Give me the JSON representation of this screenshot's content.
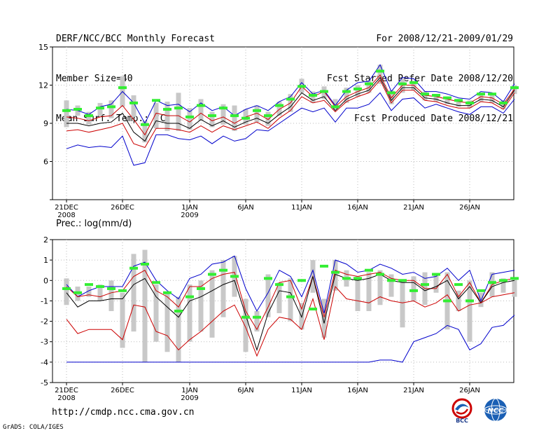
{
  "header": {
    "title": "DERF/NCC/BCC Monthly Forecast",
    "member_size": "Member Size=40",
    "variable": "Mean Surf. Temp.: °C",
    "period": "For 2008/12/21-2009/01/29",
    "fcst_started": "Fcst Started Refer Date 2008/12/20",
    "fcst_produced": "Fcst Produced Date 2008/12/21"
  },
  "footer": {
    "url": "http://cmdp.ncc.cma.gov.cn",
    "credit": "GrADS: COLA/IGES",
    "logo_left": "BCC",
    "logo_right": "NCC"
  },
  "colors": {
    "max": "#0000cc",
    "min": "#0000cc",
    "upper": "#cc0000",
    "lower": "#cc0000",
    "mean": "#000000",
    "obs": "#33ee33",
    "box": "#c8c8c8"
  },
  "chart_data": [
    {
      "type": "line",
      "title": "Mean Surf. Temp.: °C",
      "x_tick_labels": [
        "21DEC",
        "26DEC",
        "1JAN",
        "6JAN",
        "11JAN",
        "16JAN",
        "21JAN",
        "26JAN"
      ],
      "x_tick_day_index": [
        0,
        5,
        11,
        16,
        21,
        26,
        31,
        36
      ],
      "x_year_labels": [
        {
          "day_index": 0,
          "text": "2008"
        },
        {
          "day_index": 11,
          "text": "2009"
        }
      ],
      "ylim": [
        3,
        15
      ],
      "y_ticks": [
        3,
        6,
        9,
        12,
        15
      ],
      "y_tick_labels": [
        "",
        "6",
        "9",
        "12",
        "15"
      ],
      "series": [
        {
          "name": "max",
          "values": [
            10.1,
            10.0,
            9.7,
            10.3,
            10.5,
            11.5,
            10.6,
            9.0,
            10.8,
            10.4,
            10.5,
            9.9,
            10.6,
            10.0,
            10.3,
            9.6,
            10.1,
            10.4,
            10.0,
            10.7,
            11.1,
            12.2,
            11.3,
            11.6,
            10.4,
            11.6,
            12.2,
            12.3,
            13.6,
            11.5,
            12.6,
            12.5,
            11.5,
            11.5,
            11.3,
            11.0,
            10.9,
            11.5,
            11.4,
            10.7,
            12.1
          ]
        },
        {
          "name": "upper",
          "values": [
            9.5,
            9.4,
            9.2,
            9.5,
            9.6,
            10.4,
            9.3,
            8.1,
            9.8,
            9.6,
            9.6,
            9.1,
            9.8,
            9.2,
            9.5,
            9.0,
            9.5,
            9.8,
            9.3,
            10.1,
            10.6,
            11.9,
            11.1,
            11.5,
            10.3,
            11.1,
            11.5,
            11.8,
            12.8,
            11.0,
            12.0,
            12.0,
            11.2,
            11.1,
            10.9,
            10.7,
            10.6,
            11.1,
            11.0,
            10.5,
            11.7
          ]
        },
        {
          "name": "mean",
          "values": [
            9.0,
            9.0,
            8.8,
            9.0,
            9.1,
            9.8,
            8.3,
            7.6,
            9.2,
            9.0,
            9.0,
            8.6,
            9.3,
            8.8,
            9.2,
            8.7,
            9.1,
            9.4,
            9.0,
            9.7,
            10.3,
            11.4,
            10.8,
            11.1,
            10.0,
            10.9,
            11.3,
            11.6,
            12.6,
            10.8,
            11.8,
            11.8,
            11.0,
            10.9,
            10.6,
            10.4,
            10.4,
            10.9,
            10.8,
            10.3,
            11.6
          ]
        },
        {
          "name": "lower",
          "values": [
            8.4,
            8.5,
            8.3,
            8.5,
            8.7,
            9.0,
            7.4,
            7.1,
            8.6,
            8.6,
            8.5,
            8.3,
            8.8,
            8.3,
            8.8,
            8.5,
            8.8,
            9.1,
            8.6,
            9.4,
            10.0,
            11.1,
            10.6,
            10.8,
            9.9,
            10.7,
            11.1,
            11.4,
            12.4,
            10.6,
            11.6,
            11.6,
            10.8,
            10.7,
            10.4,
            10.2,
            10.2,
            10.7,
            10.6,
            10.1,
            11.4
          ]
        },
        {
          "name": "min",
          "values": [
            7.0,
            7.3,
            7.1,
            7.2,
            7.1,
            8.0,
            5.7,
            5.9,
            8.1,
            8.1,
            7.8,
            7.7,
            8.0,
            7.4,
            8.0,
            7.6,
            7.8,
            8.5,
            8.4,
            9.0,
            9.6,
            10.2,
            9.9,
            10.2,
            9.1,
            10.2,
            10.2,
            10.5,
            11.4,
            10.0,
            10.9,
            11.0,
            10.2,
            10.5,
            10.2,
            9.9,
            9.7,
            10.3,
            10.3,
            9.8,
            10.9
          ]
        },
        {
          "name": "obs",
          "values": [
            10.0,
            10.1,
            9.6,
            10.2,
            10.3,
            11.8,
            10.6,
            8.9,
            10.8,
            10.1,
            10.2,
            9.5,
            10.4,
            9.6,
            10.2,
            9.6,
            9.4,
            10.0,
            9.6,
            10.4,
            10.9,
            11.9,
            11.2,
            11.5,
            10.3,
            11.5,
            11.7,
            12.1,
            13.1,
            11.4,
            12.1,
            12.2,
            11.3,
            11.2,
            11.0,
            10.8,
            10.6,
            11.3,
            11.3,
            10.6,
            11.8
          ]
        }
      ],
      "boxes": [
        [
          8.7,
          10.8
        ],
        [
          9.6,
          10.4
        ],
        [
          8.9,
          9.9
        ],
        [
          9.6,
          10.6
        ],
        [
          9.4,
          10.8
        ],
        [
          10.3,
          12.7
        ],
        [
          9.5,
          11.2
        ],
        [
          7.5,
          9.2
        ],
        [
          8.6,
          10.6
        ],
        [
          8.4,
          10.7
        ],
        [
          8.4,
          11.4
        ],
        [
          8.5,
          10.2
        ],
        [
          9.2,
          10.9
        ],
        [
          8.7,
          9.9
        ],
        [
          8.9,
          10.5
        ],
        [
          8.4,
          10.4
        ],
        [
          8.9,
          10.1
        ],
        [
          9.1,
          10.4
        ],
        [
          8.8,
          9.9
        ],
        [
          9.6,
          10.7
        ],
        [
          9.9,
          11.3
        ],
        [
          11.4,
          12.5
        ],
        [
          10.6,
          11.5
        ],
        [
          10.9,
          11.9
        ],
        [
          10.1,
          10.9
        ],
        [
          10.6,
          11.8
        ],
        [
          11.1,
          12.0
        ],
        [
          11.4,
          12.4
        ],
        [
          12.1,
          13.6
        ],
        [
          10.5,
          11.6
        ],
        [
          11.4,
          12.5
        ],
        [
          11.6,
          12.2
        ],
        [
          10.8,
          11.5
        ],
        [
          10.7,
          11.3
        ],
        [
          10.5,
          11.1
        ],
        [
          10.3,
          10.8
        ],
        [
          10.2,
          10.8
        ],
        [
          10.7,
          11.3
        ],
        [
          10.6,
          11.3
        ],
        [
          10.1,
          10.8
        ],
        [
          11.3,
          12.0
        ]
      ]
    },
    {
      "type": "line",
      "title": "Prec.: log(mm/d)",
      "x_tick_labels": [
        "21DEC",
        "26DEC",
        "1JAN",
        "6JAN",
        "11JAN",
        "16JAN",
        "21JAN",
        "26JAN"
      ],
      "x_tick_day_index": [
        0,
        5,
        11,
        16,
        21,
        26,
        31,
        36
      ],
      "x_year_labels": [
        {
          "day_index": 0,
          "text": "2008"
        },
        {
          "day_index": 11,
          "text": "2009"
        }
      ],
      "ylim": [
        -5,
        2
      ],
      "y_ticks": [
        -5,
        -4,
        -3,
        -2,
        -1,
        0,
        1,
        2
      ],
      "y_tick_labels": [
        "-5",
        "-4",
        "-3",
        "-2",
        "-1",
        "0",
        "1",
        "2"
      ],
      "series": [
        {
          "name": "max",
          "values": [
            -0.2,
            -0.8,
            -0.5,
            -0.3,
            -0.3,
            -0.3,
            0.7,
            0.9,
            0.0,
            -0.5,
            -0.9,
            0.1,
            0.3,
            0.8,
            0.9,
            1.2,
            -0.4,
            -1.5,
            -0.6,
            0.5,
            0.2,
            -0.8,
            0.5,
            -1.6,
            1.0,
            0.8,
            0.4,
            0.5,
            0.8,
            0.6,
            0.3,
            0.4,
            0.1,
            0.2,
            0.6,
            0.0,
            0.5,
            -1.0,
            0.3,
            0.4,
            0.5
          ]
        },
        {
          "name": "upper",
          "values": [
            -0.3,
            -0.8,
            -0.7,
            -0.8,
            -0.6,
            -0.5,
            0.2,
            0.5,
            -0.5,
            -0.8,
            -1.3,
            -0.3,
            -0.3,
            0.1,
            0.3,
            0.4,
            -1.5,
            -2.4,
            -1.3,
            -0.1,
            0.0,
            -1.4,
            0.2,
            -1.8,
            0.5,
            0.3,
            0.2,
            0.3,
            0.4,
            0.1,
            0.0,
            0.0,
            -0.4,
            -0.4,
            0.3,
            -0.8,
            -0.1,
            -1.1,
            -0.2,
            0.0,
            0.1
          ]
        },
        {
          "name": "mean",
          "values": [
            -0.6,
            -1.3,
            -1.0,
            -1.0,
            -0.9,
            -0.9,
            -0.2,
            0.1,
            -0.8,
            -1.3,
            -1.8,
            -1.0,
            -0.8,
            -0.5,
            -0.2,
            0.0,
            -1.7,
            -3.4,
            -1.6,
            -0.5,
            -0.6,
            -1.8,
            0.2,
            -2.1,
            0.3,
            0.1,
            0.0,
            0.1,
            0.3,
            0.0,
            -0.1,
            -0.1,
            -0.5,
            -0.3,
            0.0,
            -0.9,
            -0.3,
            -1.1,
            -0.3,
            -0.1,
            0.0
          ]
        },
        {
          "name": "lower",
          "values": [
            -1.9,
            -2.6,
            -2.4,
            -2.4,
            -2.4,
            -2.9,
            -1.2,
            -1.3,
            -2.5,
            -2.7,
            -3.4,
            -2.9,
            -2.5,
            -2.0,
            -1.5,
            -1.2,
            -2.3,
            -3.7,
            -2.4,
            -1.8,
            -1.9,
            -2.4,
            -0.9,
            -2.9,
            -0.3,
            -0.9,
            -1.0,
            -1.1,
            -0.8,
            -1.0,
            -1.1,
            -1.0,
            -1.3,
            -1.1,
            -0.7,
            -1.5,
            -1.2,
            -1.1,
            -0.8,
            -0.7,
            -0.6
          ]
        },
        {
          "name": "min",
          "values": [
            -4.0,
            -4.0,
            -4.0,
            -4.0,
            -4.0,
            -4.0,
            -4.0,
            -4.0,
            -4.0,
            -4.0,
            -4.0,
            -4.0,
            -4.0,
            -4.0,
            -4.0,
            -4.0,
            -4.0,
            -4.0,
            -4.0,
            -4.0,
            -4.0,
            -4.0,
            -4.0,
            -4.0,
            -4.0,
            -4.0,
            -4.0,
            -4.0,
            -3.9,
            -3.9,
            -4.0,
            -3.0,
            -2.8,
            -2.6,
            -2.2,
            -2.4,
            -3.4,
            -3.1,
            -2.3,
            -2.2,
            -1.7
          ]
        },
        {
          "name": "obs",
          "values": [
            -0.4,
            -0.6,
            -0.2,
            -0.3,
            -0.4,
            -0.5,
            0.6,
            0.8,
            -0.1,
            -0.6,
            -1.5,
            -0.8,
            -0.4,
            0.3,
            0.5,
            0.2,
            -1.8,
            -1.8,
            0.1,
            -0.2,
            -0.8,
            0.0,
            -1.4,
            0.7,
            0.4,
            0.1,
            0.1,
            0.5,
            0.3,
            0.0,
            0.0,
            -0.5,
            -0.2,
            0.3,
            -1.0,
            -0.2,
            -1.0,
            -0.5,
            -0.1,
            0.0,
            0.1
          ]
        }
      ],
      "boxes": [
        [
          -1.2,
          0.1
        ],
        [
          -1.0,
          -0.3
        ],
        [
          -0.8,
          -0.3
        ],
        [
          -1.0,
          -0.2
        ],
        [
          -1.5,
          0.0
        ],
        [
          -3.3,
          -0.6
        ],
        [
          -2.5,
          1.3
        ],
        [
          -4.0,
          1.5
        ],
        [
          -3.0,
          -0.2
        ],
        [
          -3.5,
          -0.6
        ],
        [
          -4.0,
          -0.8
        ],
        [
          -3.0,
          -0.2
        ],
        [
          -2.5,
          0.0
        ],
        [
          -2.8,
          0.5
        ],
        [
          -1.8,
          1.0
        ],
        [
          -0.8,
          1.2
        ],
        [
          -3.5,
          -0.9
        ],
        [
          -2.5,
          -1.5
        ],
        [
          -1.8,
          0.3
        ],
        [
          -1.6,
          -0.1
        ],
        [
          -2.0,
          0.1
        ],
        [
          -2.4,
          -1.1
        ],
        [
          -0.6,
          1.0
        ],
        [
          -2.8,
          -0.9
        ],
        [
          -0.5,
          1.0
        ],
        [
          -0.3,
          0.5
        ],
        [
          -1.5,
          0.2
        ],
        [
          -1.5,
          0.4
        ],
        [
          -1.2,
          0.5
        ],
        [
          -0.8,
          0.3
        ],
        [
          -2.3,
          0.0
        ],
        [
          -1.0,
          0.2
        ],
        [
          -1.2,
          0.4
        ],
        [
          -0.6,
          0.3
        ],
        [
          -2.4,
          0.4
        ],
        [
          -1.5,
          -0.5
        ],
        [
          -3.0,
          0.0
        ],
        [
          -1.3,
          -0.6
        ],
        [
          -0.8,
          0.4
        ],
        [
          -0.6,
          0.1
        ],
        [
          -0.8,
          0.1
        ]
      ]
    }
  ]
}
